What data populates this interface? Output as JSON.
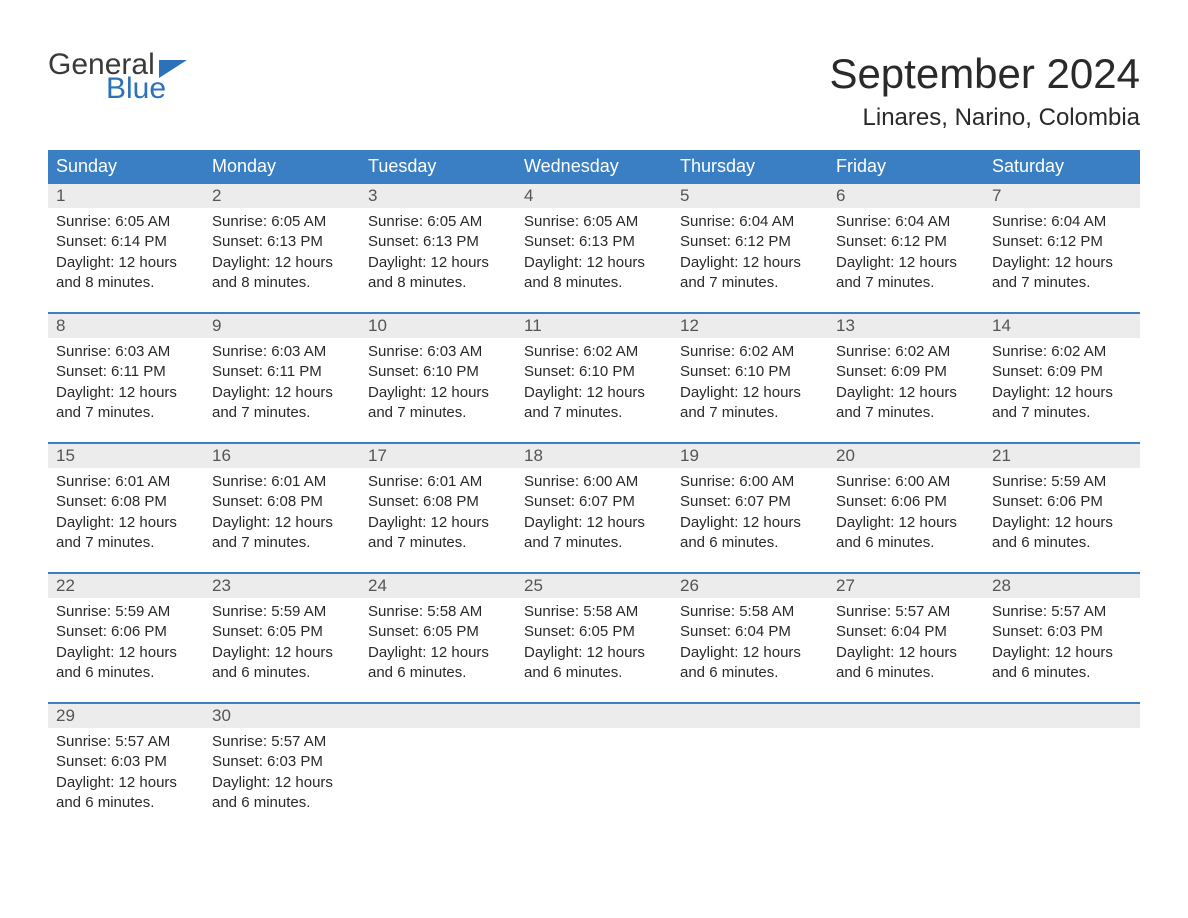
{
  "brand": {
    "name_part1": "General",
    "name_part2": "Blue",
    "text_color": "#3a3a3a",
    "accent_color": "#2d72b8"
  },
  "title": "September 2024",
  "location": "Linares, Narino, Colombia",
  "colors": {
    "header_bg": "#3a7fc4",
    "header_text": "#ffffff",
    "daynum_bg": "#ececec",
    "daynum_text": "#555555",
    "body_text": "#2a2a2a",
    "week_border": "#3a7fc4",
    "page_bg": "#ffffff"
  },
  "typography": {
    "title_fontsize": 42,
    "location_fontsize": 24,
    "weekday_fontsize": 18,
    "daynum_fontsize": 17,
    "body_fontsize": 15,
    "font_family": "Arial"
  },
  "weekdays": [
    "Sunday",
    "Monday",
    "Tuesday",
    "Wednesday",
    "Thursday",
    "Friday",
    "Saturday"
  ],
  "weeks": [
    [
      {
        "n": "1",
        "sunrise": "Sunrise: 6:05 AM",
        "sunset": "Sunset: 6:14 PM",
        "day1": "Daylight: 12 hours",
        "day2": "and 8 minutes."
      },
      {
        "n": "2",
        "sunrise": "Sunrise: 6:05 AM",
        "sunset": "Sunset: 6:13 PM",
        "day1": "Daylight: 12 hours",
        "day2": "and 8 minutes."
      },
      {
        "n": "3",
        "sunrise": "Sunrise: 6:05 AM",
        "sunset": "Sunset: 6:13 PM",
        "day1": "Daylight: 12 hours",
        "day2": "and 8 minutes."
      },
      {
        "n": "4",
        "sunrise": "Sunrise: 6:05 AM",
        "sunset": "Sunset: 6:13 PM",
        "day1": "Daylight: 12 hours",
        "day2": "and 8 minutes."
      },
      {
        "n": "5",
        "sunrise": "Sunrise: 6:04 AM",
        "sunset": "Sunset: 6:12 PM",
        "day1": "Daylight: 12 hours",
        "day2": "and 7 minutes."
      },
      {
        "n": "6",
        "sunrise": "Sunrise: 6:04 AM",
        "sunset": "Sunset: 6:12 PM",
        "day1": "Daylight: 12 hours",
        "day2": "and 7 minutes."
      },
      {
        "n": "7",
        "sunrise": "Sunrise: 6:04 AM",
        "sunset": "Sunset: 6:12 PM",
        "day1": "Daylight: 12 hours",
        "day2": "and 7 minutes."
      }
    ],
    [
      {
        "n": "8",
        "sunrise": "Sunrise: 6:03 AM",
        "sunset": "Sunset: 6:11 PM",
        "day1": "Daylight: 12 hours",
        "day2": "and 7 minutes."
      },
      {
        "n": "9",
        "sunrise": "Sunrise: 6:03 AM",
        "sunset": "Sunset: 6:11 PM",
        "day1": "Daylight: 12 hours",
        "day2": "and 7 minutes."
      },
      {
        "n": "10",
        "sunrise": "Sunrise: 6:03 AM",
        "sunset": "Sunset: 6:10 PM",
        "day1": "Daylight: 12 hours",
        "day2": "and 7 minutes."
      },
      {
        "n": "11",
        "sunrise": "Sunrise: 6:02 AM",
        "sunset": "Sunset: 6:10 PM",
        "day1": "Daylight: 12 hours",
        "day2": "and 7 minutes."
      },
      {
        "n": "12",
        "sunrise": "Sunrise: 6:02 AM",
        "sunset": "Sunset: 6:10 PM",
        "day1": "Daylight: 12 hours",
        "day2": "and 7 minutes."
      },
      {
        "n": "13",
        "sunrise": "Sunrise: 6:02 AM",
        "sunset": "Sunset: 6:09 PM",
        "day1": "Daylight: 12 hours",
        "day2": "and 7 minutes."
      },
      {
        "n": "14",
        "sunrise": "Sunrise: 6:02 AM",
        "sunset": "Sunset: 6:09 PM",
        "day1": "Daylight: 12 hours",
        "day2": "and 7 minutes."
      }
    ],
    [
      {
        "n": "15",
        "sunrise": "Sunrise: 6:01 AM",
        "sunset": "Sunset: 6:08 PM",
        "day1": "Daylight: 12 hours",
        "day2": "and 7 minutes."
      },
      {
        "n": "16",
        "sunrise": "Sunrise: 6:01 AM",
        "sunset": "Sunset: 6:08 PM",
        "day1": "Daylight: 12 hours",
        "day2": "and 7 minutes."
      },
      {
        "n": "17",
        "sunrise": "Sunrise: 6:01 AM",
        "sunset": "Sunset: 6:08 PM",
        "day1": "Daylight: 12 hours",
        "day2": "and 7 minutes."
      },
      {
        "n": "18",
        "sunrise": "Sunrise: 6:00 AM",
        "sunset": "Sunset: 6:07 PM",
        "day1": "Daylight: 12 hours",
        "day2": "and 7 minutes."
      },
      {
        "n": "19",
        "sunrise": "Sunrise: 6:00 AM",
        "sunset": "Sunset: 6:07 PM",
        "day1": "Daylight: 12 hours",
        "day2": "and 6 minutes."
      },
      {
        "n": "20",
        "sunrise": "Sunrise: 6:00 AM",
        "sunset": "Sunset: 6:06 PM",
        "day1": "Daylight: 12 hours",
        "day2": "and 6 minutes."
      },
      {
        "n": "21",
        "sunrise": "Sunrise: 5:59 AM",
        "sunset": "Sunset: 6:06 PM",
        "day1": "Daylight: 12 hours",
        "day2": "and 6 minutes."
      }
    ],
    [
      {
        "n": "22",
        "sunrise": "Sunrise: 5:59 AM",
        "sunset": "Sunset: 6:06 PM",
        "day1": "Daylight: 12 hours",
        "day2": "and 6 minutes."
      },
      {
        "n": "23",
        "sunrise": "Sunrise: 5:59 AM",
        "sunset": "Sunset: 6:05 PM",
        "day1": "Daylight: 12 hours",
        "day2": "and 6 minutes."
      },
      {
        "n": "24",
        "sunrise": "Sunrise: 5:58 AM",
        "sunset": "Sunset: 6:05 PM",
        "day1": "Daylight: 12 hours",
        "day2": "and 6 minutes."
      },
      {
        "n": "25",
        "sunrise": "Sunrise: 5:58 AM",
        "sunset": "Sunset: 6:05 PM",
        "day1": "Daylight: 12 hours",
        "day2": "and 6 minutes."
      },
      {
        "n": "26",
        "sunrise": "Sunrise: 5:58 AM",
        "sunset": "Sunset: 6:04 PM",
        "day1": "Daylight: 12 hours",
        "day2": "and 6 minutes."
      },
      {
        "n": "27",
        "sunrise": "Sunrise: 5:57 AM",
        "sunset": "Sunset: 6:04 PM",
        "day1": "Daylight: 12 hours",
        "day2": "and 6 minutes."
      },
      {
        "n": "28",
        "sunrise": "Sunrise: 5:57 AM",
        "sunset": "Sunset: 6:03 PM",
        "day1": "Daylight: 12 hours",
        "day2": "and 6 minutes."
      }
    ],
    [
      {
        "n": "29",
        "sunrise": "Sunrise: 5:57 AM",
        "sunset": "Sunset: 6:03 PM",
        "day1": "Daylight: 12 hours",
        "day2": "and 6 minutes."
      },
      {
        "n": "30",
        "sunrise": "Sunrise: 5:57 AM",
        "sunset": "Sunset: 6:03 PM",
        "day1": "Daylight: 12 hours",
        "day2": "and 6 minutes."
      },
      null,
      null,
      null,
      null,
      null
    ]
  ]
}
